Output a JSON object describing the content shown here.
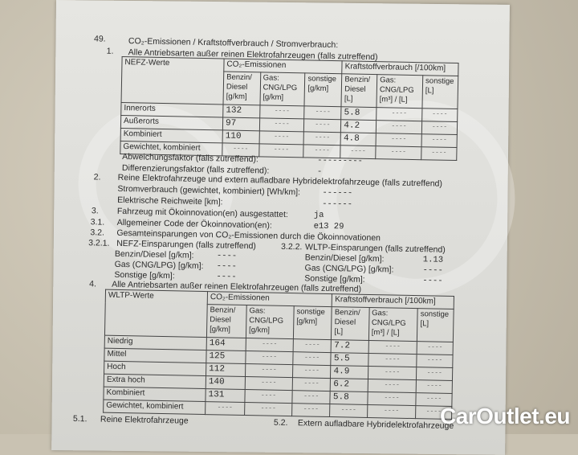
{
  "section49": {
    "num": "49.",
    "title": "CO₂-Emissionen / Kraftstoffverbrauch / Stromverbrauch:"
  },
  "s1": {
    "num": "1.",
    "title": "Alle Antriebsarten außer reinen Elektrofahrzeugen (falls zutreffend)"
  },
  "nefz": {
    "corner": "NEFZ-Werte",
    "co2": "CO₂-Emissionen",
    "fuel": "Kraftstoffverbrauch [/100km]",
    "subheads": [
      "Benzin/ Diesel [g/km]",
      "Gas: CNG/LPG [g/km]",
      "sonstige [g/km]",
      "Benzin/ Diesel [L]",
      "Gas: CNG/LPG [m³] / [L]",
      "sonstige [L]"
    ],
    "rows": [
      {
        "label": "Innerorts",
        "cells": [
          "132",
          "----",
          "----",
          "5.8",
          "----",
          "----"
        ]
      },
      {
        "label": "Außerorts",
        "cells": [
          "97",
          "----",
          "----",
          "4.2",
          "----",
          "----"
        ]
      },
      {
        "label": "Kombiniert",
        "cells": [
          "110",
          "----",
          "----",
          "4.8",
          "----",
          "----"
        ]
      },
      {
        "label": "Gewichtet, kombiniert",
        "cells": [
          "----",
          "----",
          "----",
          "----",
          "----",
          "----"
        ]
      }
    ]
  },
  "abweichung": {
    "label": "Abweichungsfaktor (falls zutreffend):",
    "value": "---------"
  },
  "differenz": {
    "label": "Differenzierungsfaktor (falls zutreffend):",
    "value": "-"
  },
  "s2": {
    "num": "2.",
    "title": "Reine Elektrofahrzeuge und extern aufladbare Hybridelektrofahrzeuge (falls zutreffend)"
  },
  "strom": {
    "label": "Stromverbrauch (gewichtet, kombiniert) [Wh/km]:",
    "value": "------"
  },
  "reichweite": {
    "label": "Elektrische Reichweite [km]:",
    "value": "------"
  },
  "s3": {
    "num": "3.",
    "label": "Fahrzeug mit Ökoinnovation(en) ausgestattet:",
    "value": "ja"
  },
  "s31": {
    "num": "3.1.",
    "label": "Allgemeiner Code der Ökoinnovation(en):",
    "value": "e13 29"
  },
  "s32": {
    "num": "3.2.",
    "label": "Gesamteinsparungen von CO₂-Emissionen durch die Ökoinnovationen"
  },
  "s321": {
    "num": "3.2.1.",
    "title": "NEFZ-Einsparungen (falls zutreffend)",
    "items": [
      {
        "label": "Benzin/Diesel [g/km]:",
        "value": "----"
      },
      {
        "label": "Gas (CNG/LPG) [g/km]:",
        "value": "----"
      },
      {
        "label": "Sonstige [g/km]:",
        "value": "----"
      }
    ]
  },
  "s322": {
    "num": "3.2.2.",
    "title": "WLTP-Einsparungen (falls zutreffend)",
    "items": [
      {
        "label": "Benzin/Diesel [g/km]:",
        "value": "1.13"
      },
      {
        "label": "Gas (CNG/LPG) [g/km]:",
        "value": "----"
      },
      {
        "label": "Sonstige [g/km]:",
        "value": "----"
      }
    ]
  },
  "s4": {
    "num": "4.",
    "title": "Alle Antriebsarten außer reinen Elektrofahrzeugen (falls zutreffend)"
  },
  "wltp": {
    "corner": "WLTP-Werte",
    "co2": "CO₂-Emissionen",
    "fuel": "Kraftstoffverbrauch [/100km]",
    "subheads": [
      "Benzin/ Diesel [g/km]",
      "Gas: CNG/LPG [g/km]",
      "sonstige [g/km]",
      "Benzin/ Diesel [L]",
      "Gas: CNG/LPG [m³] / [L]",
      "sonstige [L]"
    ],
    "rows": [
      {
        "label": "Niedrig",
        "cells": [
          "164",
          "----",
          "----",
          "7.2",
          "----",
          "----"
        ]
      },
      {
        "label": "Mittel",
        "cells": [
          "125",
          "----",
          "----",
          "5.5",
          "----",
          "----"
        ]
      },
      {
        "label": "Hoch",
        "cells": [
          "112",
          "----",
          "----",
          "4.9",
          "----",
          "----"
        ]
      },
      {
        "label": "Extra hoch",
        "cells": [
          "140",
          "----",
          "----",
          "6.2",
          "----",
          "----"
        ]
      },
      {
        "label": "Kombiniert",
        "cells": [
          "131",
          "----",
          "----",
          "5.8",
          "----",
          "----"
        ]
      },
      {
        "label": "Gewichtet, kombiniert",
        "cells": [
          "----",
          "----",
          "----",
          "----",
          "----",
          "----"
        ]
      }
    ]
  },
  "s51": {
    "num": "5.1.",
    "title": "Reine Elektrofahrzeuge"
  },
  "s52": {
    "num": "5.2.",
    "title": "Extern aufladbare Hybridelektrofahrzeuge"
  },
  "watermark": "CarOutlet.eu"
}
